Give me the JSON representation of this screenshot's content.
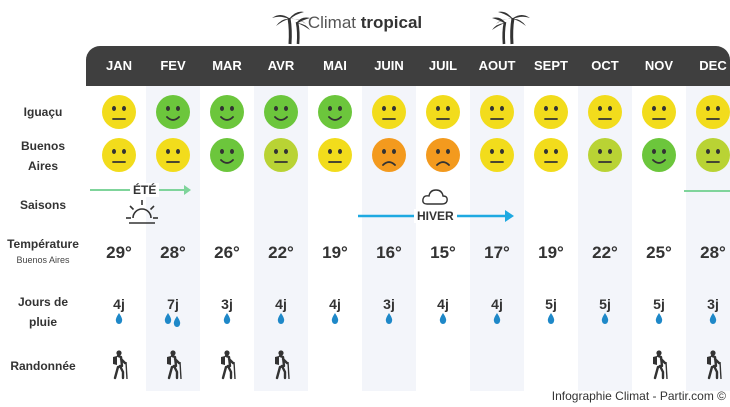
{
  "title": {
    "prefix": "Climat",
    "emph": "tropical"
  },
  "months": [
    "JAN",
    "FEV",
    "MAR",
    "AVR",
    "MAI",
    "JUIN",
    "JUIL",
    "AOUT",
    "SEPT",
    "OCT",
    "NOV",
    "DEC"
  ],
  "rows": {
    "iguacu": "Iguaçu",
    "buenos_aires": "Buenos Aires",
    "saisons": "Saisons",
    "temperature": "Température",
    "temperature_sub": "Buenos Aires",
    "jours": "Jours de pluie",
    "randonnee": "Randonnée"
  },
  "seasons": {
    "summer": "ÉTÉ",
    "winter": "HIVER"
  },
  "iguacu_moods": [
    "neutral-yellow",
    "happy-green",
    "happy-green",
    "happy-green",
    "happy-green",
    "neutral-yellow",
    "neutral-yellow",
    "neutral-yellow",
    "neutral-yellow",
    "neutral-yellow",
    "neutral-yellow",
    "neutral-yellow"
  ],
  "ba_moods": [
    "neutral-yellow",
    "neutral-yellow",
    "happy-green",
    "neutral-lime",
    "neutral-yellow",
    "sad-orange",
    "sad-orange",
    "neutral-yellow",
    "neutral-yellow",
    "neutral-lime",
    "happy-green",
    "neutral-lime"
  ],
  "temperatures": [
    "29°",
    "28°",
    "26°",
    "22°",
    "19°",
    "16°",
    "15°",
    "17°",
    "19°",
    "22°",
    "25°",
    "28°"
  ],
  "rain_days": [
    "4j",
    "7j",
    "3j",
    "4j",
    "4j",
    "3j",
    "4j",
    "4j",
    "5j",
    "5j",
    "5j",
    "3j"
  ],
  "rain_drops": [
    1,
    2,
    1,
    1,
    1,
    1,
    1,
    1,
    1,
    1,
    1,
    1
  ],
  "hiking": [
    true,
    true,
    true,
    true,
    false,
    false,
    false,
    false,
    false,
    false,
    true,
    true
  ],
  "colors": {
    "header": "#3f3f3f",
    "stripe": "#f3f5fa",
    "yellow": "#f2dc1c",
    "green": "#6cc63c",
    "lime": "#b9d334",
    "orange": "#f39a1e",
    "summer_arrow": "#7fd49b",
    "winter_arrow": "#1ea9e1",
    "drop": "#1e88c8"
  },
  "footer": "Infographie Climat - Partir.com ©"
}
